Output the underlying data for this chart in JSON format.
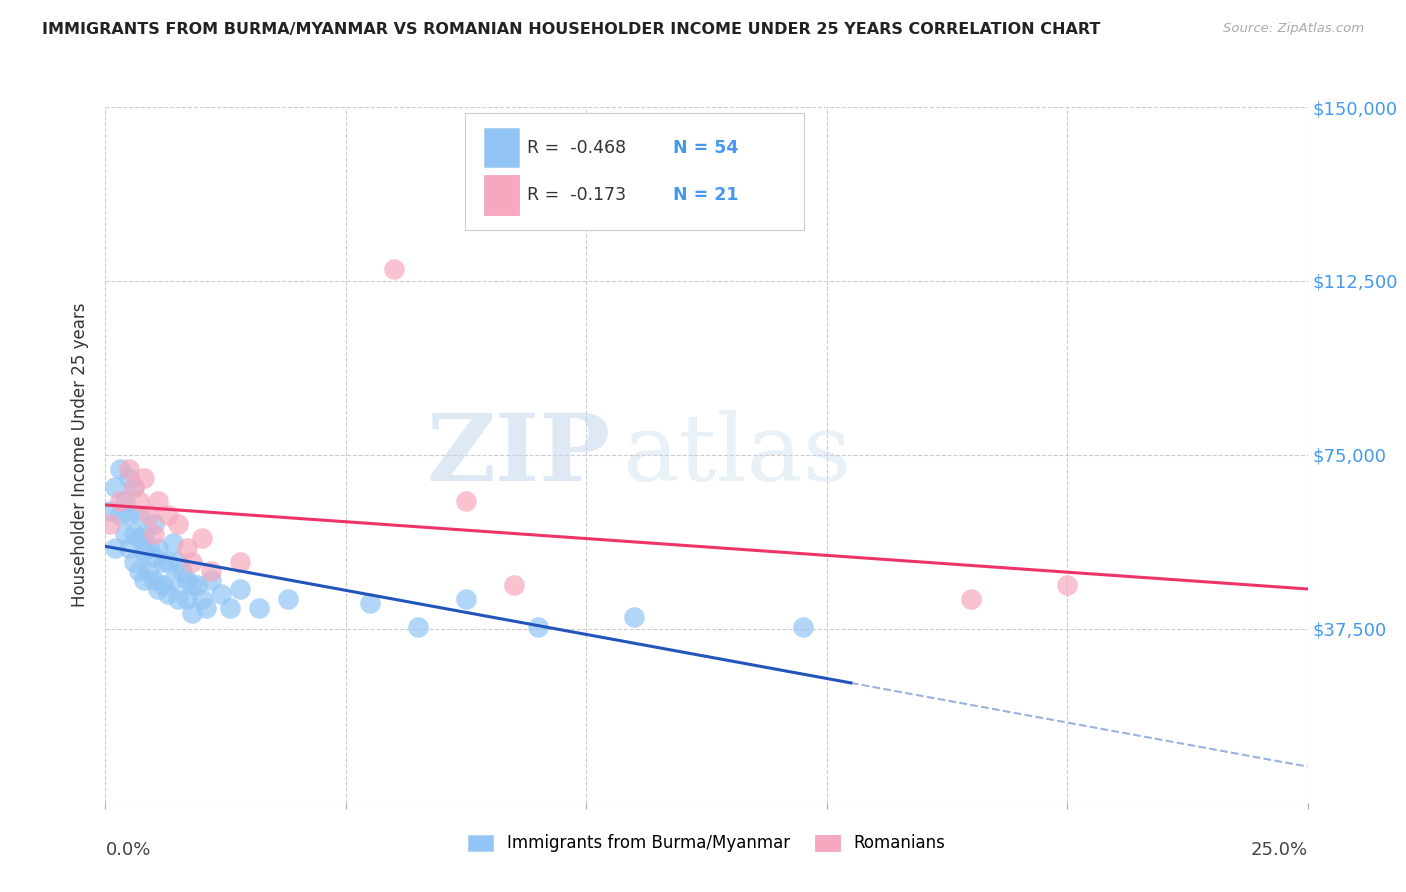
{
  "title": "IMMIGRANTS FROM BURMA/MYANMAR VS ROMANIAN HOUSEHOLDER INCOME UNDER 25 YEARS CORRELATION CHART",
  "source": "Source: ZipAtlas.com",
  "ylabel": "Householder Income Under 25 years",
  "xlim": [
    0.0,
    0.25
  ],
  "ylim": [
    0,
    150000
  ],
  "yticks": [
    0,
    37500,
    75000,
    112500,
    150000
  ],
  "ytick_labels": [
    "",
    "$37,500",
    "$75,000",
    "$112,500",
    "$150,000"
  ],
  "color_burma": "#92C5F5",
  "color_romanian": "#F7A8BE",
  "color_burma_line": "#2255BB",
  "color_romanian_line": "#EE3366",
  "color_title": "#222222",
  "color_ytick": "#4499EE",
  "color_grid": "#CCCCCC",
  "background": "#FFFFFF",
  "watermark_zip": "ZIP",
  "watermark_atlas": "atlas",
  "legend_items": [
    {
      "r": "R =  -0.468",
      "n": "N = 54",
      "color": "#92C5F5"
    },
    {
      "r": "R =  -0.173",
      "n": "N = 21",
      "color": "#F7A8BE"
    }
  ],
  "burma_x": [
    0.001,
    0.002,
    0.002,
    0.003,
    0.003,
    0.004,
    0.004,
    0.005,
    0.005,
    0.005,
    0.006,
    0.006,
    0.006,
    0.007,
    0.007,
    0.007,
    0.008,
    0.008,
    0.008,
    0.009,
    0.009,
    0.01,
    0.01,
    0.01,
    0.011,
    0.011,
    0.012,
    0.012,
    0.013,
    0.013,
    0.014,
    0.014,
    0.015,
    0.015,
    0.016,
    0.017,
    0.017,
    0.018,
    0.018,
    0.019,
    0.02,
    0.021,
    0.022,
    0.024,
    0.026,
    0.028,
    0.032,
    0.038,
    0.055,
    0.065,
    0.075,
    0.09,
    0.11,
    0.145
  ],
  "burma_y": [
    63000,
    68000,
    55000,
    72000,
    62000,
    65000,
    58000,
    70000,
    62000,
    55000,
    68000,
    58000,
    52000,
    62000,
    57000,
    50000,
    58000,
    54000,
    48000,
    55000,
    50000,
    60000,
    53000,
    48000,
    55000,
    46000,
    52000,
    47000,
    52000,
    45000,
    56000,
    48000,
    52000,
    44000,
    50000,
    48000,
    44000,
    47000,
    41000,
    47000,
    44000,
    42000,
    48000,
    45000,
    42000,
    46000,
    42000,
    44000,
    43000,
    38000,
    44000,
    38000,
    40000,
    38000
  ],
  "romanian_x": [
    0.001,
    0.003,
    0.005,
    0.006,
    0.007,
    0.008,
    0.009,
    0.01,
    0.011,
    0.013,
    0.015,
    0.017,
    0.018,
    0.02,
    0.022,
    0.028,
    0.06,
    0.075,
    0.085,
    0.18,
    0.2
  ],
  "romanian_y": [
    60000,
    65000,
    72000,
    68000,
    65000,
    70000,
    62000,
    58000,
    65000,
    62000,
    60000,
    55000,
    52000,
    57000,
    50000,
    52000,
    115000,
    65000,
    47000,
    44000,
    47000
  ]
}
